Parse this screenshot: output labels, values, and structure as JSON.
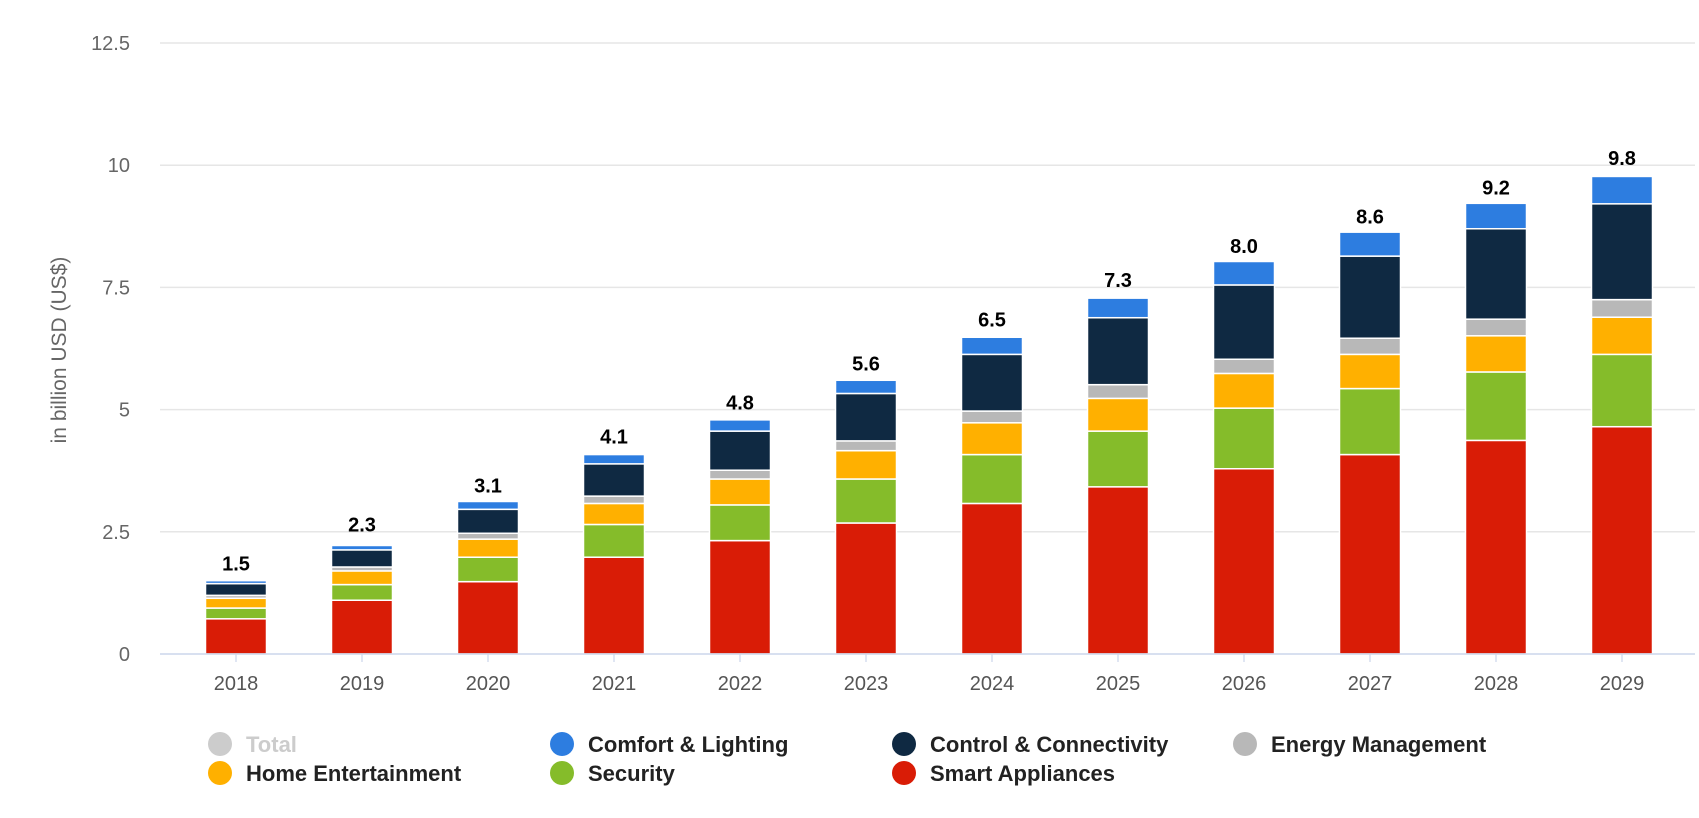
{
  "chart_data": {
    "type": "bar",
    "stacked": true,
    "title": "",
    "xlabel": "",
    "ylabel": "in billion USD (US$)",
    "ylim": [
      0,
      12.5
    ],
    "yticks": [
      0,
      2.5,
      5,
      7.5,
      10,
      12.5
    ],
    "ytick_labels": [
      "0",
      "2.5",
      "5",
      "7.5",
      "10",
      "12.5"
    ],
    "grid": true,
    "legend_position": "bottom",
    "categories": [
      "2018",
      "2019",
      "2020",
      "2021",
      "2022",
      "2023",
      "2024",
      "2025",
      "2026",
      "2027",
      "2028",
      "2029"
    ],
    "totals": [
      1.5,
      2.3,
      3.1,
      4.1,
      4.8,
      5.6,
      6.5,
      7.3,
      8.0,
      8.6,
      9.2,
      9.8
    ],
    "total_labels": [
      "1.5",
      "2.3",
      "3.1",
      "4.1",
      "4.8",
      "5.6",
      "6.5",
      "7.3",
      "8.0",
      "8.6",
      "9.2",
      "9.8"
    ],
    "series": [
      {
        "name": "Smart Appliances",
        "color": "#d91c06",
        "values": [
          0.72,
          1.1,
          1.48,
          1.98,
          2.32,
          2.68,
          3.08,
          3.42,
          3.79,
          4.08,
          4.37,
          4.65
        ]
      },
      {
        "name": "Security",
        "color": "#85bc2a",
        "values": [
          0.22,
          0.32,
          0.5,
          0.67,
          0.73,
          0.9,
          1.0,
          1.14,
          1.24,
          1.35,
          1.4,
          1.48
        ]
      },
      {
        "name": "Home Entertainment",
        "color": "#ffb000",
        "values": [
          0.2,
          0.28,
          0.37,
          0.43,
          0.53,
          0.58,
          0.65,
          0.67,
          0.71,
          0.7,
          0.74,
          0.76
        ]
      },
      {
        "name": "Energy Management",
        "color": "#b8b8b8",
        "values": [
          0.06,
          0.08,
          0.12,
          0.15,
          0.18,
          0.2,
          0.24,
          0.28,
          0.29,
          0.33,
          0.34,
          0.36
        ]
      },
      {
        "name": "Control & Connectivity",
        "color": "#0f2942",
        "values": [
          0.24,
          0.35,
          0.49,
          0.66,
          0.8,
          0.97,
          1.16,
          1.37,
          1.52,
          1.68,
          1.85,
          1.96
        ]
      },
      {
        "name": "Comfort & Lighting",
        "color": "#2d7de0",
        "values": [
          0.06,
          0.09,
          0.16,
          0.19,
          0.23,
          0.27,
          0.35,
          0.4,
          0.48,
          0.49,
          0.52,
          0.56
        ]
      }
    ],
    "legend": [
      {
        "name": "Total",
        "color": "#cccccc",
        "hidden": true
      },
      {
        "name": "Comfort & Lighting",
        "color": "#2d7de0",
        "hidden": false
      },
      {
        "name": "Control & Connectivity",
        "color": "#0f2942",
        "hidden": false
      },
      {
        "name": "Energy Management",
        "color": "#b8b8b8",
        "hidden": false
      },
      {
        "name": "Home Entertainment",
        "color": "#ffb000",
        "hidden": false
      },
      {
        "name": "Security",
        "color": "#85bc2a",
        "hidden": false
      },
      {
        "name": "Smart Appliances",
        "color": "#d91c06",
        "hidden": false
      }
    ]
  },
  "colors": {
    "gridline": "#e6e6e6",
    "axis_line": "#ccd6eb",
    "total_disabled": "#cccccc"
  }
}
